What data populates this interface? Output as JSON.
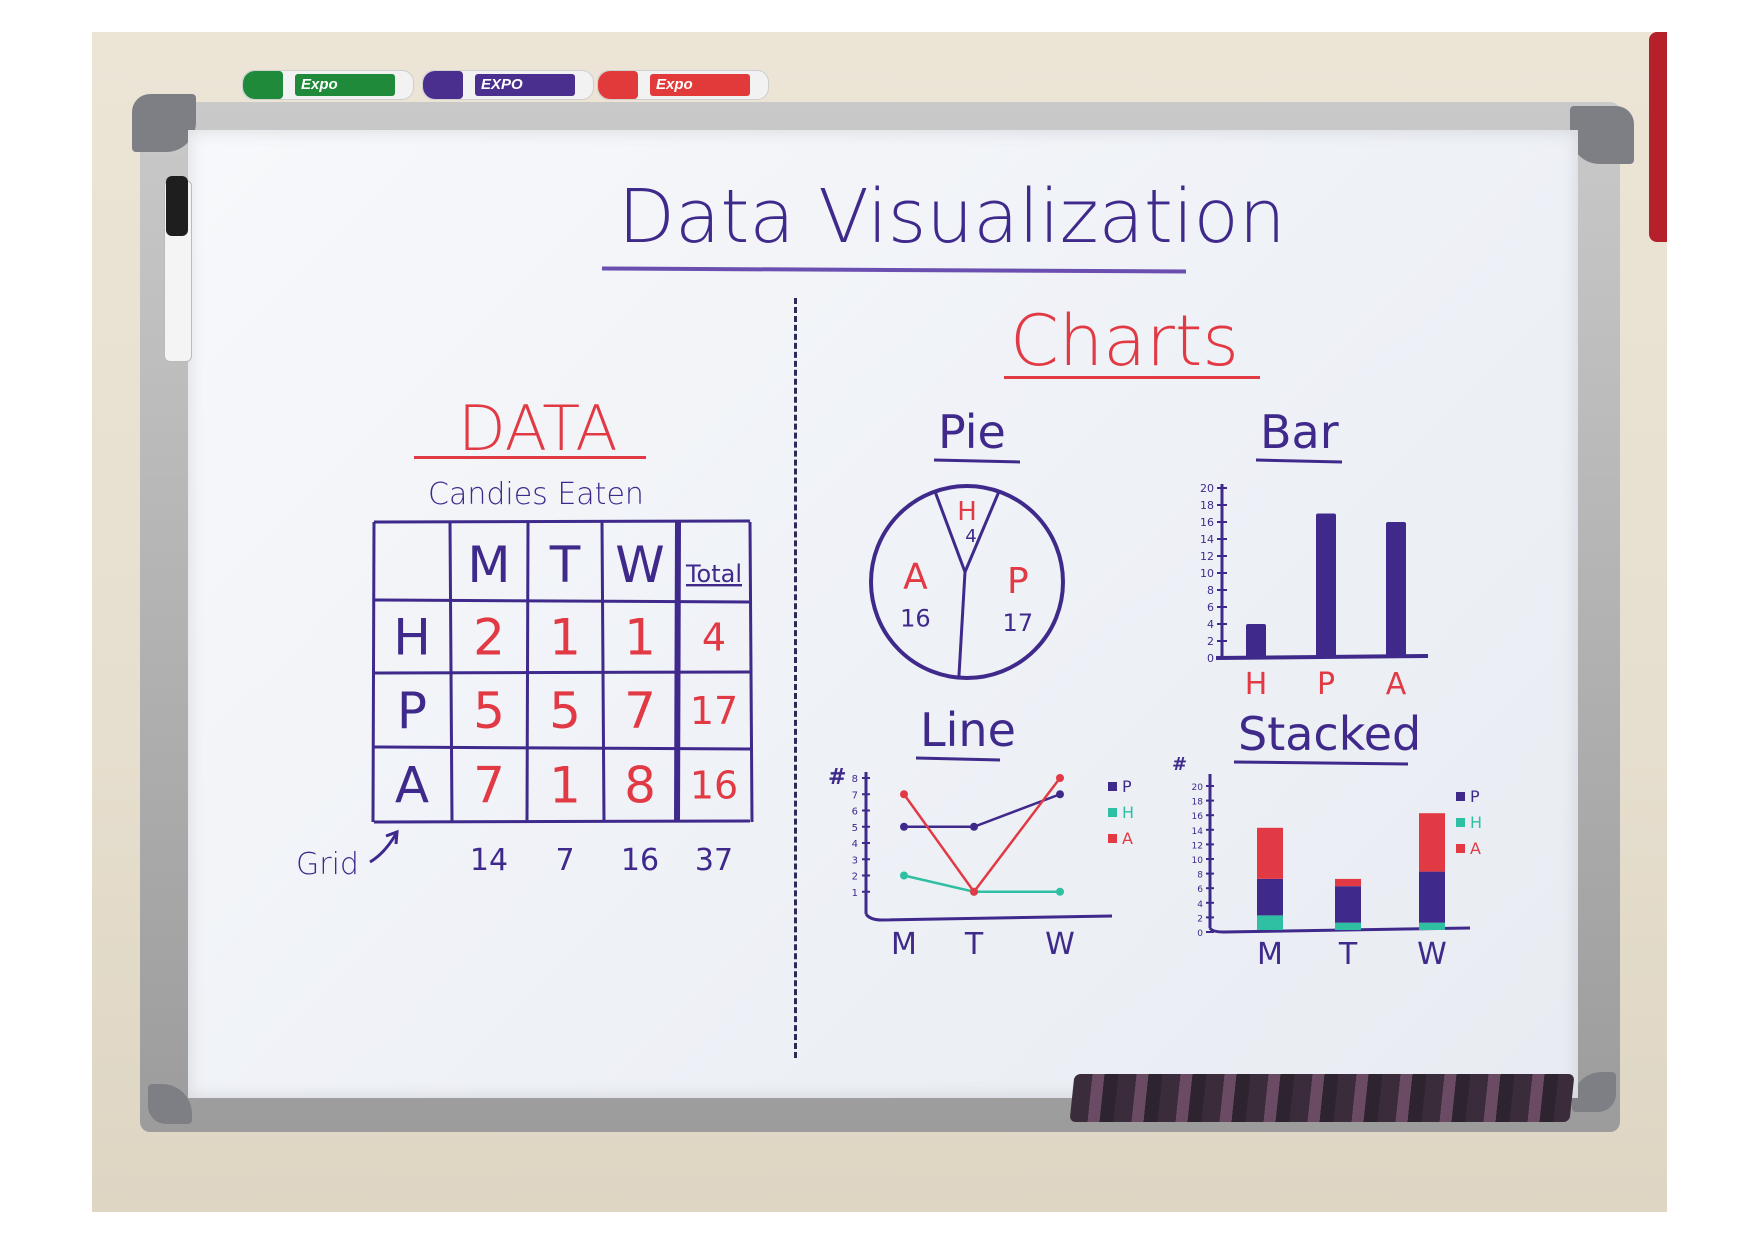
{
  "board": {
    "title": "Data Visualization",
    "left_heading": "DATA",
    "right_heading": "Charts",
    "table_caption": "Candies Eaten",
    "grid_label": "Grid"
  },
  "markers": [
    {
      "brand": "Expo",
      "color": "#1f8a3a"
    },
    {
      "brand": "EXPO",
      "color": "#4a2f8f"
    },
    {
      "brand": "Expo",
      "color": "#e23a3a"
    }
  ],
  "table": {
    "columns": [
      "",
      "M",
      "T",
      "W",
      "Total"
    ],
    "rows": [
      {
        "label": "H",
        "values": [
          "2",
          "1",
          "1"
        ],
        "total": "4"
      },
      {
        "label": "P",
        "values": [
          "5",
          "5",
          "7"
        ],
        "total": "17"
      },
      {
        "label": "A",
        "values": [
          "7",
          "1",
          "8"
        ],
        "total": "16"
      }
    ],
    "column_totals": [
      "14",
      "7",
      "16",
      "37"
    ]
  },
  "colors": {
    "P": "#3f2a8c",
    "H": "#2fbfa3",
    "A": "#e23a45",
    "ink": "#3f2a8c"
  },
  "chart_data": [
    {
      "type": "pie",
      "title": "Pie",
      "slices": [
        {
          "name": "H",
          "value": 4
        },
        {
          "name": "P",
          "value": 17
        },
        {
          "name": "A",
          "value": 16
        }
      ]
    },
    {
      "type": "bar",
      "title": "Bar",
      "categories": [
        "H",
        "P",
        "A"
      ],
      "values": [
        4,
        17,
        16
      ],
      "ylim": [
        0,
        20
      ],
      "yticks": [
        "0",
        "2",
        "4",
        "6",
        "8",
        "10",
        "12",
        "14",
        "16",
        "18",
        "20"
      ]
    },
    {
      "type": "line",
      "title": "Line",
      "ylabel": "#",
      "x": [
        "M",
        "T",
        "W"
      ],
      "ylim": [
        0,
        8
      ],
      "yticks": [
        "1",
        "2",
        "3",
        "4",
        "5",
        "6",
        "7",
        "8"
      ],
      "legend": [
        "P",
        "H",
        "A"
      ],
      "series": [
        {
          "name": "P",
          "values": [
            5,
            5,
            7
          ]
        },
        {
          "name": "H",
          "values": [
            2,
            1,
            1
          ]
        },
        {
          "name": "A",
          "values": [
            7,
            1,
            8
          ]
        }
      ]
    },
    {
      "type": "bar",
      "stacked": true,
      "title": "Stacked",
      "ylabel": "#",
      "x": [
        "M",
        "T",
        "W"
      ],
      "ylim": [
        0,
        20
      ],
      "yticks": [
        "0",
        "2",
        "4",
        "6",
        "8",
        "10",
        "12",
        "14",
        "16",
        "18",
        "20"
      ],
      "legend": [
        "P",
        "H",
        "A"
      ],
      "series": [
        {
          "name": "H",
          "values": [
            2,
            1,
            1
          ]
        },
        {
          "name": "P",
          "values": [
            5,
            5,
            7
          ]
        },
        {
          "name": "A",
          "values": [
            7,
            1,
            8
          ]
        }
      ]
    }
  ]
}
